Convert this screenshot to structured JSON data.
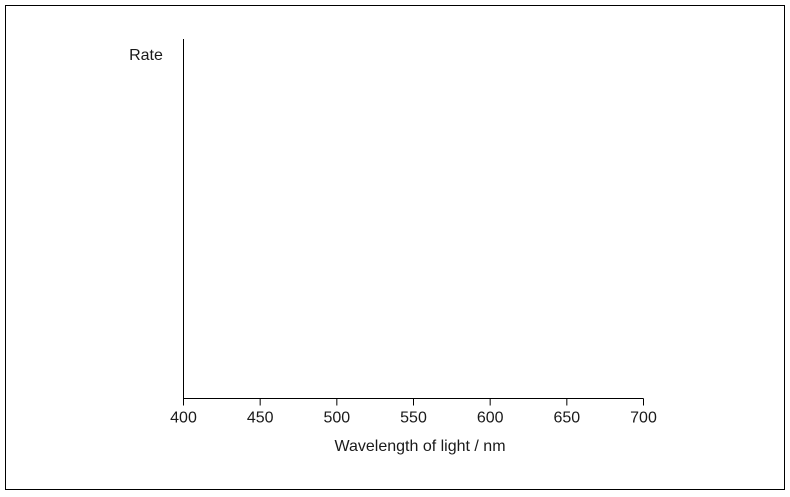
{
  "chart_data": {
    "type": "line",
    "title": "",
    "xlabel": "Wavelength of light / nm",
    "ylabel": "Rate",
    "x_ticks": [
      400,
      450,
      500,
      550,
      600,
      650,
      700
    ],
    "xlim": [
      400,
      700
    ],
    "grid": false,
    "series": []
  }
}
